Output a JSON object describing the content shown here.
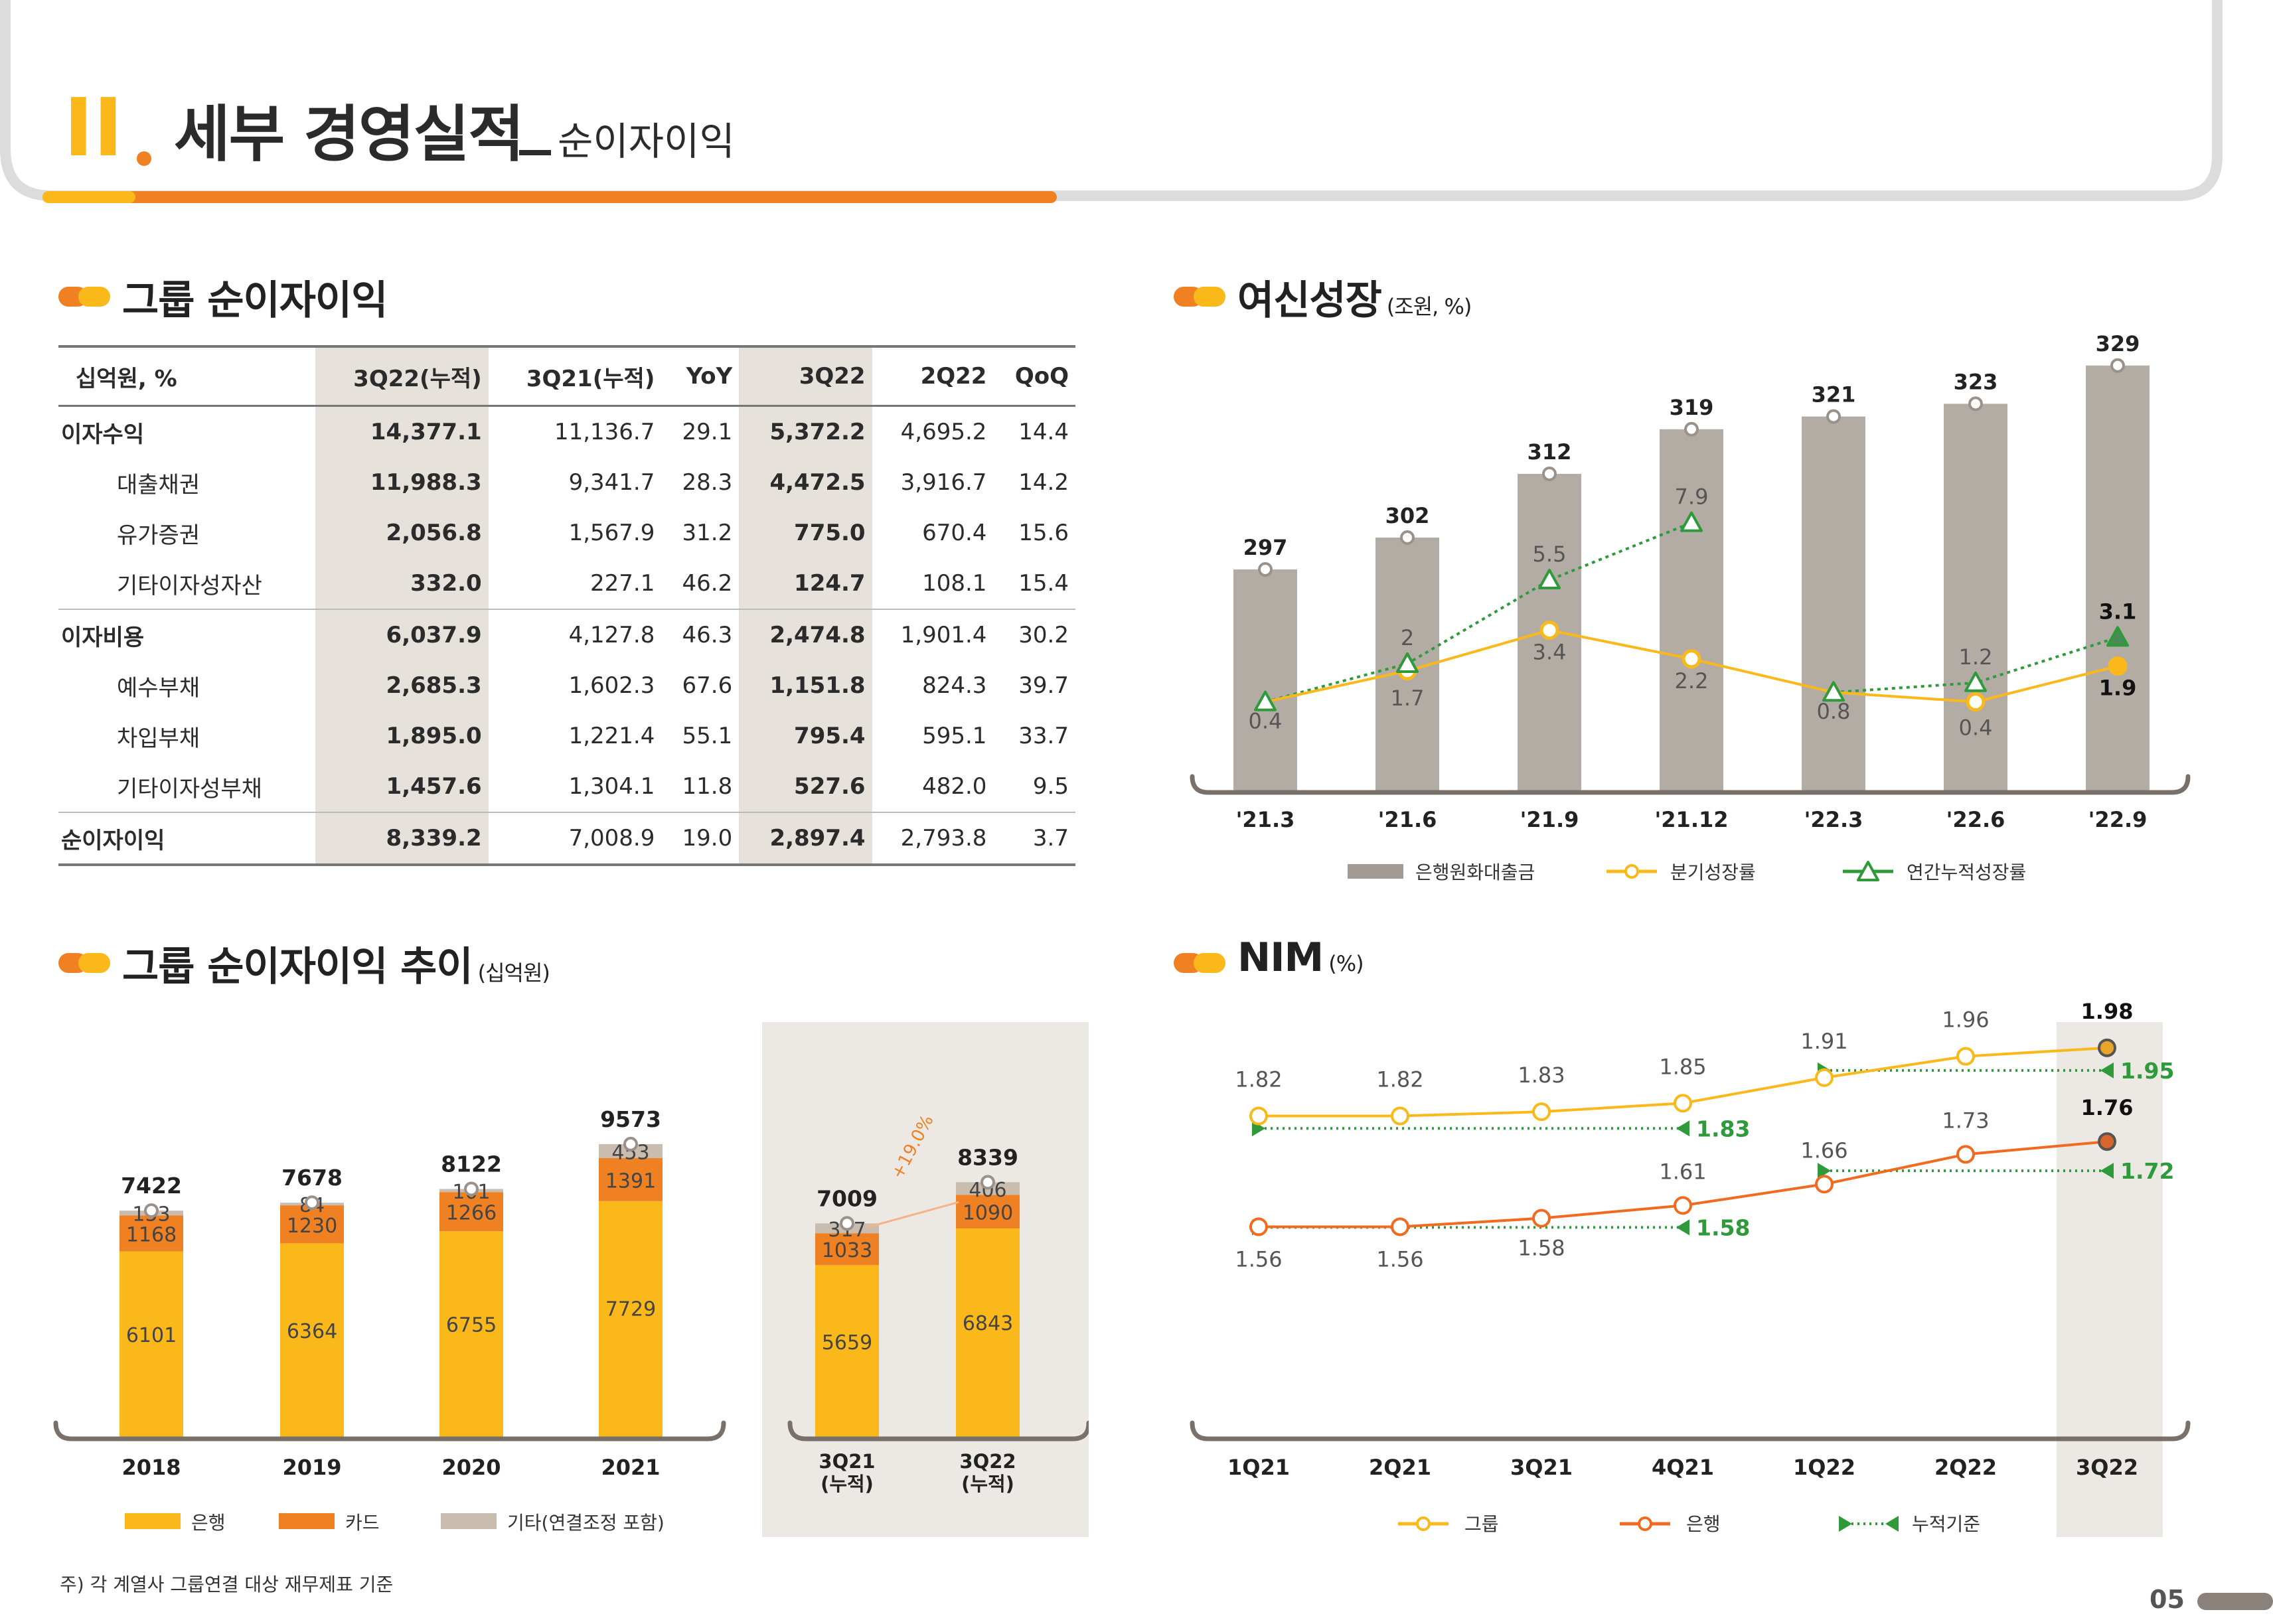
{
  "page": {
    "roman": "II",
    "title": "세부 경영실적",
    "subtitle": "순이자이익",
    "page_number": "05",
    "footnote": "주) 각 계열사 그룹연결 대상 재무제표 기준",
    "colors": {
      "accent": "#f08122",
      "yellow": "#fbb81a",
      "gray_bar": "#b3aca5",
      "tan": "#c9bdb0",
      "panel": "#ece8e3",
      "green": "#2f9a3a"
    }
  },
  "table": {
    "title": "그룹 순이자이익",
    "headers": [
      "십억원, %",
      "3Q22(누적)",
      "3Q21(누적)",
      "YoY",
      "3Q22",
      "2Q22",
      "QoQ"
    ],
    "rows": [
      {
        "label": "이자수익",
        "level": 1,
        "values": [
          "14,377.1",
          "11,136.7",
          "29.1",
          "5,372.2",
          "4,695.2",
          "14.4"
        ]
      },
      {
        "label": "대출채권",
        "level": 2,
        "values": [
          "11,988.3",
          "9,341.7",
          "28.3",
          "4,472.5",
          "3,916.7",
          "14.2"
        ]
      },
      {
        "label": "유가증권",
        "level": 2,
        "values": [
          "2,056.8",
          "1,567.9",
          "31.2",
          "775.0",
          "670.4",
          "15.6"
        ]
      },
      {
        "label": "기타이자성자산",
        "level": 2,
        "values": [
          "332.0",
          "227.1",
          "46.2",
          "124.7",
          "108.1",
          "15.4"
        ]
      },
      {
        "label": "이자비용",
        "level": 1,
        "values": [
          "6,037.9",
          "4,127.8",
          "46.3",
          "2,474.8",
          "1,901.4",
          "30.2"
        ]
      },
      {
        "label": "예수부채",
        "level": 2,
        "values": [
          "2,685.3",
          "1,602.3",
          "67.6",
          "1,151.8",
          "824.3",
          "39.7"
        ]
      },
      {
        "label": "차입부채",
        "level": 2,
        "values": [
          "1,895.0",
          "1,221.4",
          "55.1",
          "795.4",
          "595.1",
          "33.7"
        ]
      },
      {
        "label": "기타이자성부채",
        "level": 2,
        "values": [
          "1,457.6",
          "1,304.1",
          "11.8",
          "527.6",
          "482.0",
          "9.5"
        ]
      },
      {
        "label": "순이자이익",
        "level": 1,
        "values": [
          "8,339.2",
          "7,008.9",
          "19.0",
          "2,897.4",
          "2,793.8",
          "3.7"
        ]
      }
    ]
  },
  "chart_data": [
    {
      "id": "loan_growth",
      "title": "여신성장",
      "unit": "(조원, %)",
      "type": "bar",
      "categories": [
        "'21.3",
        "'21.6",
        "'21.9",
        "'21.12",
        "'22.3",
        "'22.6",
        "'22.9"
      ],
      "series": [
        {
          "name": "은행원화대출금",
          "type": "bar",
          "values": [
            297,
            302,
            312,
            319,
            321,
            323,
            329
          ]
        },
        {
          "name": "분기성장률",
          "type": "line",
          "values": [
            0.4,
            1.7,
            3.4,
            2.2,
            0.8,
            0.4,
            1.9
          ]
        },
        {
          "name": "연간누적성장률",
          "type": "line",
          "values": [
            0.4,
            2.0,
            5.5,
            7.9,
            0.8,
            1.2,
            3.1
          ]
        }
      ]
    },
    {
      "id": "nii_trend",
      "title": "그룹 순이자이익 추이",
      "unit": "(십억원)",
      "type": "bar",
      "stacked": true,
      "categories": [
        "2018",
        "2019",
        "2020",
        "2021"
      ],
      "series": [
        {
          "name": "은행",
          "values": [
            6101,
            6364,
            6755,
            7729
          ]
        },
        {
          "name": "카드",
          "values": [
            1168,
            1230,
            1266,
            1391
          ]
        },
        {
          "name": "기타(연결조정 포함)",
          "values": [
            153,
            84,
            101,
            453
          ]
        }
      ],
      "totals": [
        7422,
        7678,
        8122,
        9573
      ]
    },
    {
      "id": "nii_cumulative",
      "type": "bar",
      "stacked": true,
      "categories": [
        "3Q21\n(누적)",
        "3Q22\n(누적)"
      ],
      "category_lines": [
        [
          "3Q21",
          "(누적)"
        ],
        [
          "3Q22",
          "(누적)"
        ]
      ],
      "series": [
        {
          "name": "은행",
          "values": [
            5659,
            6843
          ]
        },
        {
          "name": "카드",
          "values": [
            1033,
            1090
          ]
        },
        {
          "name": "기타(연결조정 포함)",
          "values": [
            317,
            406
          ]
        }
      ],
      "totals": [
        7009,
        8339
      ],
      "growth_label": "+19.0%"
    },
    {
      "id": "nim",
      "title": "NIM",
      "unit": "(%)",
      "type": "line",
      "categories": [
        "1Q21",
        "2Q21",
        "3Q21",
        "4Q21",
        "1Q22",
        "2Q22",
        "3Q22"
      ],
      "series": [
        {
          "name": "그룹",
          "values": [
            1.82,
            1.82,
            1.83,
            1.85,
            1.91,
            1.96,
            1.98
          ],
          "labels": [
            "1.82",
            "1.82",
            "1.83",
            "1.85",
            "1.91",
            "1.96",
            "1.98"
          ]
        },
        {
          "name": "은행",
          "values": [
            1.56,
            1.56,
            1.58,
            1.61,
            1.66,
            1.73,
            1.76
          ],
          "labels": [
            "1.56",
            "1.56",
            "1.58",
            "1.61",
            "1.66",
            "1.73",
            "1.76"
          ]
        }
      ],
      "cumulative": {
        "name": "누적기준",
        "group": [
          "1.83",
          "1.95"
        ],
        "bank": [
          "1.58",
          "1.72"
        ]
      },
      "highlight_category": "3Q22"
    }
  ]
}
